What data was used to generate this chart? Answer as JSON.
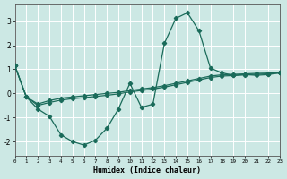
{
  "xlabel": "Humidex (Indice chaleur)",
  "bg_color": "#cce8e4",
  "grid_color": "#b0d8d4",
  "line_color": "#1a6b5a",
  "xlim": [
    0,
    23
  ],
  "ylim": [
    -2.6,
    3.7
  ],
  "yticks": [
    -2,
    -1,
    0,
    1,
    2,
    3
  ],
  "xticks": [
    0,
    1,
    2,
    3,
    4,
    5,
    6,
    7,
    8,
    9,
    10,
    11,
    12,
    13,
    14,
    15,
    16,
    17,
    18,
    19,
    20,
    21,
    22,
    23
  ],
  "curve1_x": [
    0,
    1,
    2,
    3,
    4,
    5,
    6,
    7,
    8,
    9,
    10,
    11,
    12,
    13,
    14,
    15,
    16,
    17,
    18,
    19,
    20,
    21,
    22,
    23
  ],
  "curve1_y": [
    1.15,
    -0.15,
    -0.65,
    -0.95,
    -1.72,
    -2.0,
    -2.15,
    -1.95,
    -1.45,
    -0.65,
    0.42,
    -0.58,
    -0.45,
    2.08,
    3.12,
    3.35,
    2.6,
    1.05,
    0.85,
    0.75,
    0.78,
    0.75,
    0.78,
    0.85
  ],
  "curve2_x": [
    0,
    1,
    2,
    3,
    4,
    5,
    6,
    7,
    8,
    9,
    10,
    11,
    12,
    13,
    14,
    15,
    16,
    17,
    18,
    19,
    20,
    21,
    22,
    23
  ],
  "curve2_y": [
    1.15,
    -0.15,
    -0.5,
    -0.38,
    -0.28,
    -0.22,
    -0.18,
    -0.13,
    -0.08,
    -0.02,
    0.06,
    0.12,
    0.18,
    0.26,
    0.36,
    0.46,
    0.56,
    0.66,
    0.72,
    0.74,
    0.77,
    0.79,
    0.81,
    0.85
  ],
  "curve3_x": [
    0,
    1,
    2,
    3,
    4,
    5,
    6,
    7,
    8,
    9,
    10,
    11,
    12,
    13,
    14,
    15,
    16,
    17,
    18,
    19,
    20,
    21,
    22,
    23
  ],
  "curve3_y": [
    1.15,
    -0.15,
    -0.44,
    -0.3,
    -0.2,
    -0.15,
    -0.1,
    -0.05,
    0.0,
    0.04,
    0.12,
    0.18,
    0.24,
    0.32,
    0.42,
    0.52,
    0.62,
    0.72,
    0.77,
    0.79,
    0.81,
    0.83,
    0.84,
    0.87
  ]
}
